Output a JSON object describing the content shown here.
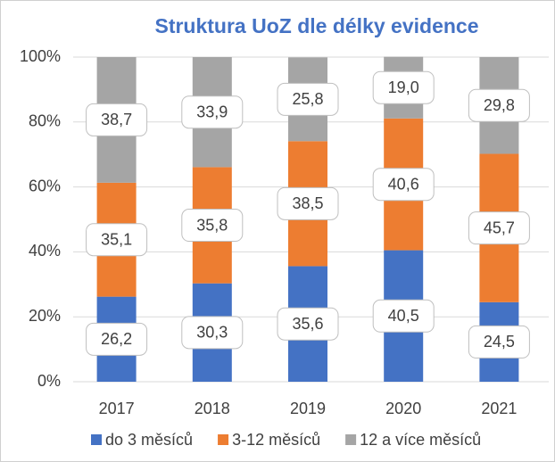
{
  "chart_data": {
    "type": "stacked_bar",
    "title": "Struktura UoZ dle délky evidence",
    "categories": [
      "2017",
      "2018",
      "2019",
      "2020",
      "2021"
    ],
    "series": [
      {
        "name": "do 3 měsíců",
        "color": "#4472c4",
        "values": [
          26.2,
          30.3,
          35.6,
          40.5,
          24.5
        ],
        "value_labels": [
          "26,2",
          "30,3",
          "35,6",
          "40,5",
          "24,5"
        ]
      },
      {
        "name": "3-12 měsíců",
        "color": "#ed7d31",
        "values": [
          35.1,
          35.8,
          38.5,
          40.6,
          45.7
        ],
        "value_labels": [
          "35,1",
          "35,8",
          "38,5",
          "40,6",
          "45,7"
        ]
      },
      {
        "name": "12 a více měsíců",
        "color": "#a5a5a5",
        "values": [
          38.7,
          33.9,
          25.8,
          19.0,
          29.8
        ],
        "value_labels": [
          "38,7",
          "33,9",
          "25,8",
          "19,0",
          "29,8"
        ]
      }
    ],
    "ylim": [
      0,
      100
    ],
    "yticks": [
      {
        "value": 0,
        "label": "0%"
      },
      {
        "value": 20,
        "label": "20%"
      },
      {
        "value": 40,
        "label": "40%"
      },
      {
        "value": 60,
        "label": "60%"
      },
      {
        "value": 80,
        "label": "80%"
      },
      {
        "value": 100,
        "label": "100%"
      }
    ],
    "grid": true,
    "legend": "bottom"
  }
}
